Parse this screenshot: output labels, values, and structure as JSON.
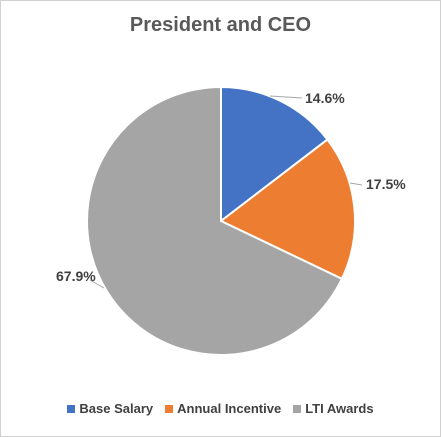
{
  "chart_data": {
    "type": "pie",
    "title": "President and CEO",
    "categories": [
      "Base Salary",
      "Annual Incentive",
      "LTI Awards"
    ],
    "values": [
      14.6,
      17.5,
      67.9
    ],
    "labels": [
      "14.6%",
      "17.5%",
      "67.9%"
    ],
    "colors": [
      "#4472C4",
      "#ED7D31",
      "#A5A5A5"
    ],
    "legend_position": "bottom"
  }
}
